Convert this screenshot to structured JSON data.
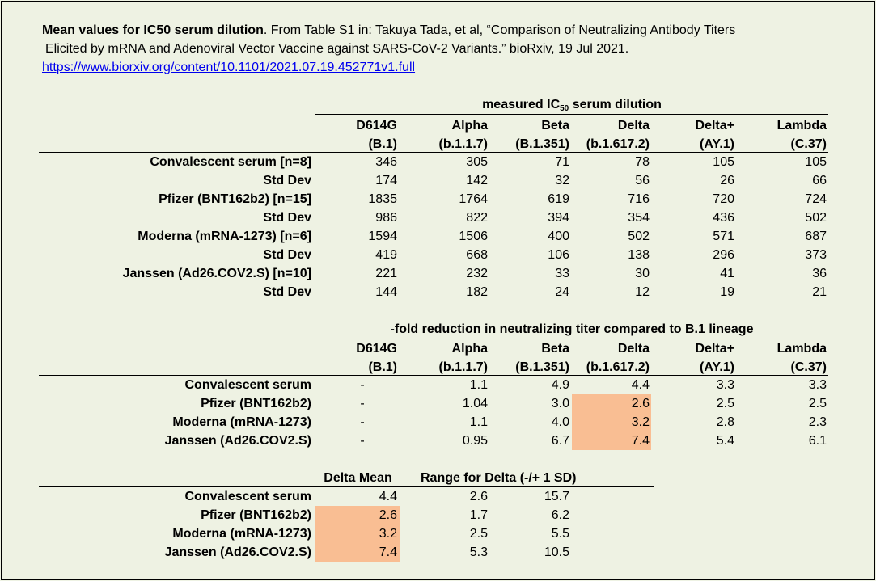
{
  "caption": {
    "bold": "Mean values for IC50 serum dilution",
    "text1": ". From Table S1 in: Takuya Tada, et al, “Comparison of Neutralizing Antibody Titers",
    "text2": "Elicited by mRNA and Adenoviral Vector Vaccine against SARS-CoV-2 Variants.” bioRxiv, 19 Jul 2021.",
    "link": "https://www.biorxiv.org/content/10.1101/2021.07.19.452771v1.full"
  },
  "table1": {
    "title_pre": "measured IC",
    "title_sub": "50",
    "title_post": " serum dilution",
    "columns": [
      {
        "name": "D614G",
        "lineage": "(B.1)"
      },
      {
        "name": "Alpha",
        "lineage": "(b.1.1.7)"
      },
      {
        "name": "Beta",
        "lineage": "(B.1.351)"
      },
      {
        "name": "Delta",
        "lineage": "(b.1.617.2)"
      },
      {
        "name": "Delta+",
        "lineage": "(AY.1)"
      },
      {
        "name": "Lambda",
        "lineage": "(C.37)"
      }
    ],
    "rows": [
      {
        "label": "Convalescent serum [n=8]",
        "values": [
          "346",
          "305",
          "71",
          "78",
          "105",
          "105"
        ]
      },
      {
        "label": "Std Dev",
        "values": [
          "174",
          "142",
          "32",
          "56",
          "26",
          "66"
        ]
      },
      {
        "label": "Pfizer (BNT162b2) [n=15]",
        "values": [
          "1835",
          "1764",
          "619",
          "716",
          "720",
          "724"
        ]
      },
      {
        "label": "Std Dev",
        "values": [
          "986",
          "822",
          "394",
          "354",
          "436",
          "502"
        ]
      },
      {
        "label": "Moderna (mRNA-1273) [n=6]",
        "values": [
          "1594",
          "1506",
          "400",
          "502",
          "571",
          "687"
        ]
      },
      {
        "label": "Std Dev",
        "values": [
          "419",
          "668",
          "106",
          "138",
          "296",
          "373"
        ]
      },
      {
        "label": "Janssen (Ad26.COV2.S) [n=10]",
        "values": [
          "221",
          "232",
          "33",
          "30",
          "41",
          "36"
        ]
      },
      {
        "label": "Std Dev",
        "values": [
          "144",
          "182",
          "24",
          "12",
          "19",
          "21"
        ]
      }
    ]
  },
  "table2": {
    "title": "-fold reduction in neutralizing titer compared to B.1 lineage",
    "columns": [
      {
        "name": "D614G",
        "lineage": "(B.1)"
      },
      {
        "name": "Alpha",
        "lineage": "(b.1.1.7)"
      },
      {
        "name": "Beta",
        "lineage": "(B.1.351)"
      },
      {
        "name": "Delta",
        "lineage": "(b.1.617.2)"
      },
      {
        "name": "Delta+",
        "lineage": "(AY.1)"
      },
      {
        "name": "Lambda",
        "lineage": "(C.37)"
      }
    ],
    "rows": [
      {
        "label": "Convalescent serum",
        "values": [
          "-",
          "1.1",
          "4.9",
          "4.4",
          "3.3",
          "3.3"
        ],
        "highlight_delta": false
      },
      {
        "label": "Pfizer (BNT162b2)",
        "values": [
          "-",
          "1.04",
          "3.0",
          "2.6",
          "2.5",
          "2.5"
        ],
        "highlight_delta": true
      },
      {
        "label": "Moderna (mRNA-1273)",
        "values": [
          "-",
          "1.1",
          "4.0",
          "3.2",
          "2.8",
          "2.3"
        ],
        "highlight_delta": true
      },
      {
        "label": "Janssen (Ad26.COV2.S)",
        "values": [
          "-",
          "0.95",
          "6.7",
          "7.4",
          "5.4",
          "6.1"
        ],
        "highlight_delta": true
      }
    ],
    "highlight_color": "#f9be93"
  },
  "table3": {
    "col_mean": "Delta Mean",
    "col_range": "Range for Delta (-/+ 1 SD)",
    "rows": [
      {
        "label": "Convalescent serum",
        "mean": "4.4",
        "low": "2.6",
        "high": "15.7",
        "highlight": false
      },
      {
        "label": "Pfizer (BNT162b2)",
        "mean": "2.6",
        "low": "1.7",
        "high": "6.2",
        "highlight": true
      },
      {
        "label": "Moderna (mRNA-1273)",
        "mean": "3.2",
        "low": "2.5",
        "high": "5.5",
        "highlight": true
      },
      {
        "label": "Janssen (Ad26.COV2.S)",
        "mean": "7.4",
        "low": "5.3",
        "high": "10.5",
        "highlight": true
      }
    ]
  }
}
